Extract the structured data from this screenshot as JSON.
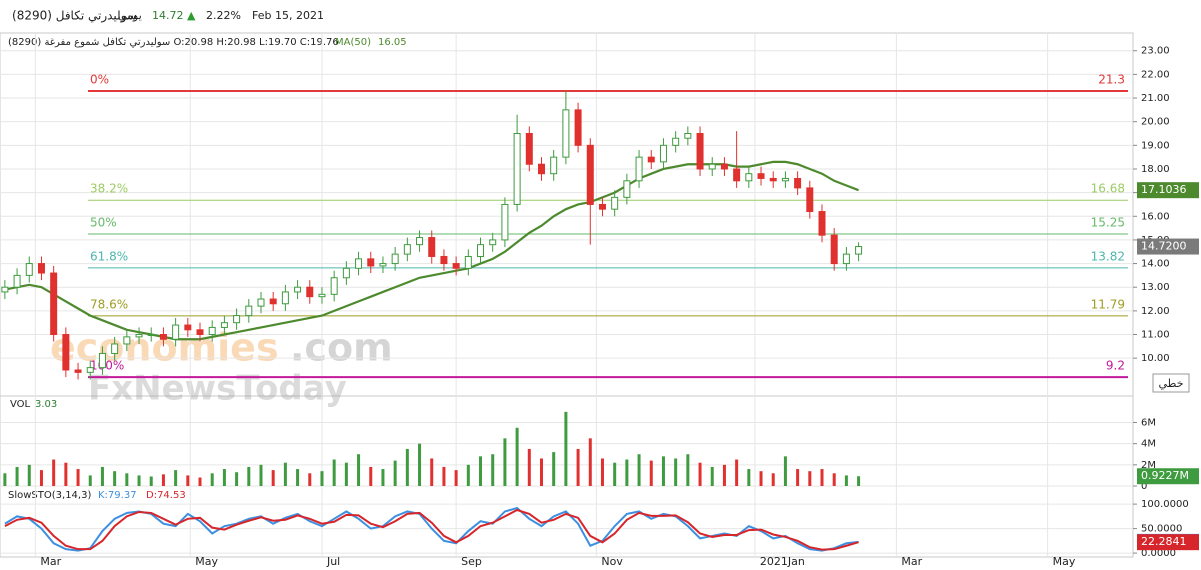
{
  "header": {
    "name": "سوليدرتي تكافل (8290)",
    "interval": "يومي",
    "price": 14.72,
    "arrow": "▲",
    "change": "2.22%",
    "date": "Feb 15, 2021"
  },
  "watermark": [
    "economies",
    ".com",
    "FxNewsToday"
  ],
  "chart_data": [
    {
      "type": "candlestick",
      "legend": "سوليدرتي تكافل شموع مفرغة (8290) O:20.98 H:20.98 L:19.70 C:19.76",
      "button": "خطي",
      "up_color": "#3f9b3f",
      "down_color": "#e0312f",
      "x": [
        0,
        1,
        2,
        3,
        4,
        5,
        6,
        7,
        8,
        9,
        10,
        11,
        12,
        13,
        14,
        15,
        16,
        17,
        18,
        19,
        20,
        21,
        22,
        23,
        24,
        25,
        26,
        27,
        28,
        29,
        30,
        31,
        32,
        33,
        34,
        35,
        36,
        37,
        38,
        39,
        40,
        41,
        42,
        43,
        44,
        45,
        46,
        47,
        48,
        49,
        50,
        51,
        52,
        53,
        54,
        55,
        56,
        57,
        58,
        59,
        60,
        61,
        62,
        63,
        64,
        65,
        66,
        67,
        68,
        69,
        70
      ],
      "open": [
        12.8,
        13.0,
        13.5,
        14.0,
        13.6,
        11.0,
        9.5,
        9.4,
        9.6,
        10.2,
        10.6,
        10.9,
        11.0,
        11.0,
        10.8,
        11.4,
        11.2,
        11.0,
        11.3,
        11.5,
        11.8,
        12.2,
        12.5,
        12.3,
        12.8,
        13.0,
        12.6,
        12.7,
        13.4,
        13.8,
        14.2,
        13.9,
        14.0,
        14.4,
        14.8,
        15.1,
        14.3,
        14.0,
        13.8,
        14.3,
        14.8,
        15.0,
        16.5,
        19.5,
        18.2,
        17.8,
        18.5,
        20.5,
        19.0,
        16.5,
        16.3,
        16.8,
        17.5,
        18.5,
        18.3,
        19.0,
        19.3,
        19.5,
        18.0,
        18.2,
        18.0,
        17.5,
        17.8,
        17.6,
        17.5,
        17.6,
        17.2,
        16.2,
        15.2,
        14.0,
        14.4
      ],
      "high": [
        13.3,
        13.8,
        14.3,
        14.3,
        13.9,
        11.3,
        9.8,
        9.9,
        10.5,
        10.9,
        11.2,
        11.3,
        11.3,
        11.3,
        11.7,
        11.7,
        11.5,
        11.6,
        11.8,
        12.1,
        12.5,
        12.8,
        12.8,
        13.1,
        13.3,
        13.3,
        13.0,
        13.7,
        14.1,
        14.5,
        14.5,
        14.3,
        14.7,
        15.1,
        15.4,
        15.4,
        14.6,
        14.3,
        14.6,
        15.1,
        15.3,
        16.8,
        20.3,
        19.8,
        18.5,
        18.8,
        21.3,
        20.8,
        19.3,
        16.8,
        17.1,
        17.8,
        18.8,
        18.8,
        19.3,
        19.6,
        19.8,
        19.8,
        18.5,
        18.5,
        19.6,
        18.1,
        18.1,
        17.9,
        17.9,
        17.9,
        17.5,
        16.5,
        15.5,
        14.7,
        14.9
      ],
      "low": [
        12.5,
        12.7,
        13.2,
        13.3,
        10.7,
        9.2,
        9.1,
        9.1,
        9.3,
        9.9,
        10.3,
        10.6,
        10.7,
        10.5,
        10.5,
        10.9,
        10.7,
        10.7,
        11.0,
        11.2,
        11.5,
        11.9,
        12.0,
        12.0,
        12.5,
        12.3,
        12.3,
        12.4,
        13.1,
        13.5,
        13.6,
        13.6,
        13.7,
        14.1,
        14.5,
        14.0,
        13.7,
        13.5,
        13.5,
        14.0,
        14.5,
        14.7,
        16.2,
        17.9,
        17.5,
        17.5,
        18.2,
        18.7,
        14.8,
        16.0,
        16.0,
        16.5,
        17.2,
        18.0,
        18.0,
        18.7,
        19.0,
        17.7,
        17.7,
        17.7,
        17.2,
        17.2,
        17.3,
        17.2,
        17.2,
        16.9,
        15.9,
        14.9,
        13.7,
        13.7,
        14.1
      ],
      "close": [
        13.0,
        13.5,
        14.0,
        13.6,
        11.0,
        9.5,
        9.4,
        9.6,
        10.2,
        10.6,
        10.9,
        11.0,
        11.0,
        10.8,
        11.4,
        11.2,
        11.0,
        11.3,
        11.5,
        11.8,
        12.2,
        12.5,
        12.3,
        12.8,
        13.0,
        12.6,
        12.7,
        13.4,
        13.8,
        14.2,
        13.9,
        14.0,
        14.4,
        14.8,
        15.1,
        14.3,
        14.0,
        13.8,
        14.3,
        14.8,
        15.0,
        16.5,
        19.5,
        18.2,
        17.8,
        18.5,
        20.5,
        19.0,
        16.5,
        16.3,
        16.8,
        17.5,
        18.5,
        18.3,
        19.0,
        19.3,
        19.5,
        18.0,
        18.2,
        18.0,
        17.5,
        17.8,
        17.6,
        17.5,
        17.6,
        17.2,
        16.2,
        15.2,
        14.0,
        14.4,
        14.72
      ],
      "last_price": {
        "value": 14.72,
        "label": "14.7200"
      },
      "series": [
        {
          "name": "MA(50)",
          "legend_value": 16.05,
          "color": "#4d8a2e",
          "values": [
            12.9,
            13.0,
            13.1,
            13.0,
            12.7,
            12.4,
            12.1,
            11.8,
            11.6,
            11.4,
            11.2,
            11.1,
            11.0,
            10.9,
            10.8,
            10.8,
            10.8,
            10.9,
            11.0,
            11.1,
            11.2,
            11.3,
            11.4,
            11.5,
            11.6,
            11.7,
            11.8,
            12.0,
            12.2,
            12.4,
            12.6,
            12.8,
            13.0,
            13.2,
            13.4,
            13.5,
            13.6,
            13.7,
            13.8,
            14.0,
            14.2,
            14.5,
            14.9,
            15.3,
            15.6,
            16.0,
            16.3,
            16.5,
            16.6,
            16.8,
            17.0,
            17.3,
            17.6,
            17.8,
            18.0,
            18.1,
            18.2,
            18.2,
            18.2,
            18.2,
            18.1,
            18.1,
            18.2,
            18.3,
            18.3,
            18.2,
            18.0,
            17.8,
            17.5,
            17.3,
            17.1036
          ]
        }
      ],
      "fib_levels": [
        {
          "label": "0%",
          "value": 21.3,
          "color": "#e03a3a"
        },
        {
          "label": "38.2%",
          "value": 16.68,
          "color": "#9ccc65"
        },
        {
          "label": "50%",
          "value": 15.25,
          "color": "#66bb6a"
        },
        {
          "label": "61.8%",
          "value": 13.82,
          "color": "#4db6ac"
        },
        {
          "label": "78.6%",
          "value": 11.79,
          "color": "#9e9d24"
        },
        {
          "label": "100%",
          "value": 9.2,
          "color": "#c2189b"
        }
      ],
      "xlim": [
        -0.4,
        92.5
      ],
      "xticks": [
        {
          "value": 2.5,
          "label": "Mar"
        },
        {
          "value": 15.2,
          "label": "May"
        },
        {
          "value": 26,
          "label": "Jul"
        },
        {
          "value": 37,
          "label": "Sep"
        },
        {
          "value": 48.5,
          "label": "Nov"
        },
        {
          "value": 61.5,
          "label": "2021Jan"
        },
        {
          "value": 73.1,
          "label": "Mar"
        },
        {
          "value": 85.5,
          "label": "May"
        }
      ],
      "ylim": [
        8.4,
        23.75
      ],
      "yticks": [
        {
          "value": 10,
          "label": "10.00"
        },
        {
          "value": 11,
          "label": "11.00"
        },
        {
          "value": 12,
          "label": "12.00"
        },
        {
          "value": 13,
          "label": "13.00"
        },
        {
          "value": 14,
          "label": "14.00"
        },
        {
          "value": 15,
          "label": "15.00"
        },
        {
          "value": 16,
          "label": "16.00"
        },
        {
          "value": 17,
          "label": "17.00"
        },
        {
          "value": 18,
          "label": "18.00"
        },
        {
          "value": 19,
          "label": "19.00"
        },
        {
          "value": 20,
          "label": "20.00"
        },
        {
          "value": 21,
          "label": "21.00"
        },
        {
          "value": 22,
          "label": "22.00"
        },
        {
          "value": 23,
          "label": "23.00"
        }
      ],
      "grid": true
    },
    {
      "type": "bar",
      "name": "VOL",
      "legend_value": 3.03,
      "values": [
        1.2,
        1.8,
        2.0,
        1.5,
        2.5,
        2.2,
        1.6,
        1.0,
        1.8,
        1.4,
        1.2,
        1.0,
        0.9,
        1.1,
        1.5,
        1.0,
        0.8,
        1.2,
        1.6,
        1.3,
        1.8,
        2.0,
        1.5,
        2.2,
        1.6,
        1.2,
        1.4,
        2.5,
        2.2,
        3.0,
        1.8,
        1.6,
        2.4,
        3.5,
        4.0,
        2.6,
        1.8,
        1.5,
        2.0,
        2.8,
        3.0,
        4.5,
        5.5,
        3.5,
        2.6,
        3.2,
        7.0,
        3.5,
        4.5,
        2.6,
        2.2,
        2.5,
        3.0,
        2.4,
        2.8,
        2.6,
        3.0,
        2.2,
        1.8,
        2.0,
        2.5,
        1.6,
        1.4,
        1.2,
        2.8,
        1.6,
        1.4,
        1.6,
        1.2,
        1.0,
        0.9227
      ],
      "last_value": {
        "value": 0.9227,
        "label": "0.9227M"
      },
      "ylim": [
        0,
        8.5
      ],
      "yticks": [
        {
          "value": 0,
          "label": "0"
        },
        {
          "value": 2,
          "label": "2M"
        },
        {
          "value": 4,
          "label": "4M"
        },
        {
          "value": 6,
          "label": "6M"
        }
      ],
      "grid": true
    },
    {
      "type": "line",
      "title": "SlowSTO(3,14,3)",
      "series": [
        {
          "name": "K:79.37",
          "color": "#3d8fe0",
          "values": [
            60,
            75,
            70,
            50,
            20,
            8,
            5,
            10,
            45,
            70,
            82,
            85,
            80,
            60,
            55,
            80,
            65,
            40,
            55,
            60,
            70,
            75,
            60,
            72,
            80,
            65,
            55,
            70,
            85,
            70,
            50,
            55,
            75,
            85,
            80,
            50,
            25,
            20,
            45,
            65,
            60,
            85,
            92,
            70,
            55,
            75,
            85,
            60,
            15,
            25,
            55,
            80,
            85,
            70,
            80,
            75,
            55,
            30,
            35,
            40,
            35,
            55,
            45,
            30,
            35,
            20,
            8,
            5,
            10,
            20,
            22.8806
          ]
        },
        {
          "name": "D:74.53",
          "color": "#d7262b",
          "values": [
            55,
            68,
            72,
            62,
            35,
            15,
            8,
            8,
            25,
            55,
            75,
            84,
            82,
            70,
            58,
            70,
            72,
            52,
            48,
            58,
            66,
            73,
            66,
            68,
            77,
            70,
            60,
            64,
            78,
            77,
            60,
            53,
            65,
            80,
            82,
            62,
            35,
            22,
            35,
            55,
            62,
            75,
            88,
            80,
            62,
            68,
            80,
            72,
            35,
            22,
            40,
            68,
            82,
            76,
            76,
            77,
            63,
            40,
            33,
            37,
            37,
            47,
            48,
            38,
            33,
            25,
            12,
            7,
            8,
            15,
            22.2841
          ]
        }
      ],
      "ylim": [
        -8,
        137
      ],
      "yticks": [
        {
          "value": 0,
          "label": "0.0000"
        },
        {
          "value": 50,
          "label": "50.0000"
        },
        {
          "value": 100,
          "label": "100.0000"
        }
      ],
      "grid": true
    }
  ]
}
